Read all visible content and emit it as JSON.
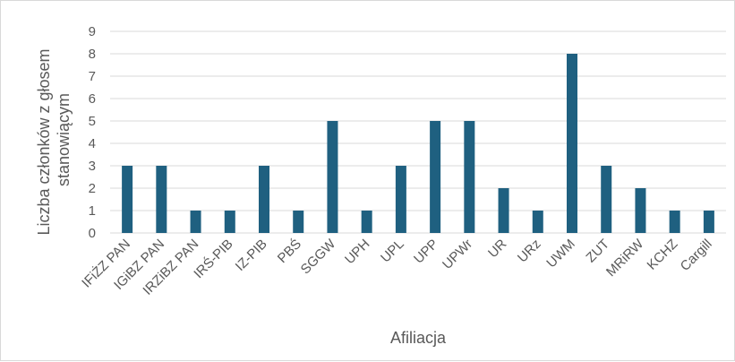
{
  "chart_data": {
    "type": "bar",
    "title": "",
    "xlabel": "Afiliacja",
    "ylabel_lines": [
      "Liczba członków z głosem",
      "stanowiącym"
    ],
    "ylim": [
      0,
      9
    ],
    "yticks": [
      "0",
      "1",
      "2",
      "3",
      "4",
      "5",
      "6",
      "7",
      "8",
      "9"
    ],
    "grid": true,
    "legend": "none",
    "bar_color": "#1f6080",
    "categories": [
      "IFiŻZ PAN",
      "IGiBZ PAN",
      "IRZiBZ PAN",
      "IRŚ-PIB",
      "IZ-PIB",
      "PBŚ",
      "SGGW",
      "UPH",
      "UPL",
      "UPP",
      "UPWr",
      "UR",
      "URz",
      "UWM",
      "ZUT",
      "MRiRW",
      "KCHZ",
      "Cargill"
    ],
    "values": [
      3,
      3,
      1,
      1,
      3,
      1,
      5,
      1,
      3,
      5,
      5,
      2,
      1,
      8,
      3,
      2,
      1,
      1
    ]
  }
}
